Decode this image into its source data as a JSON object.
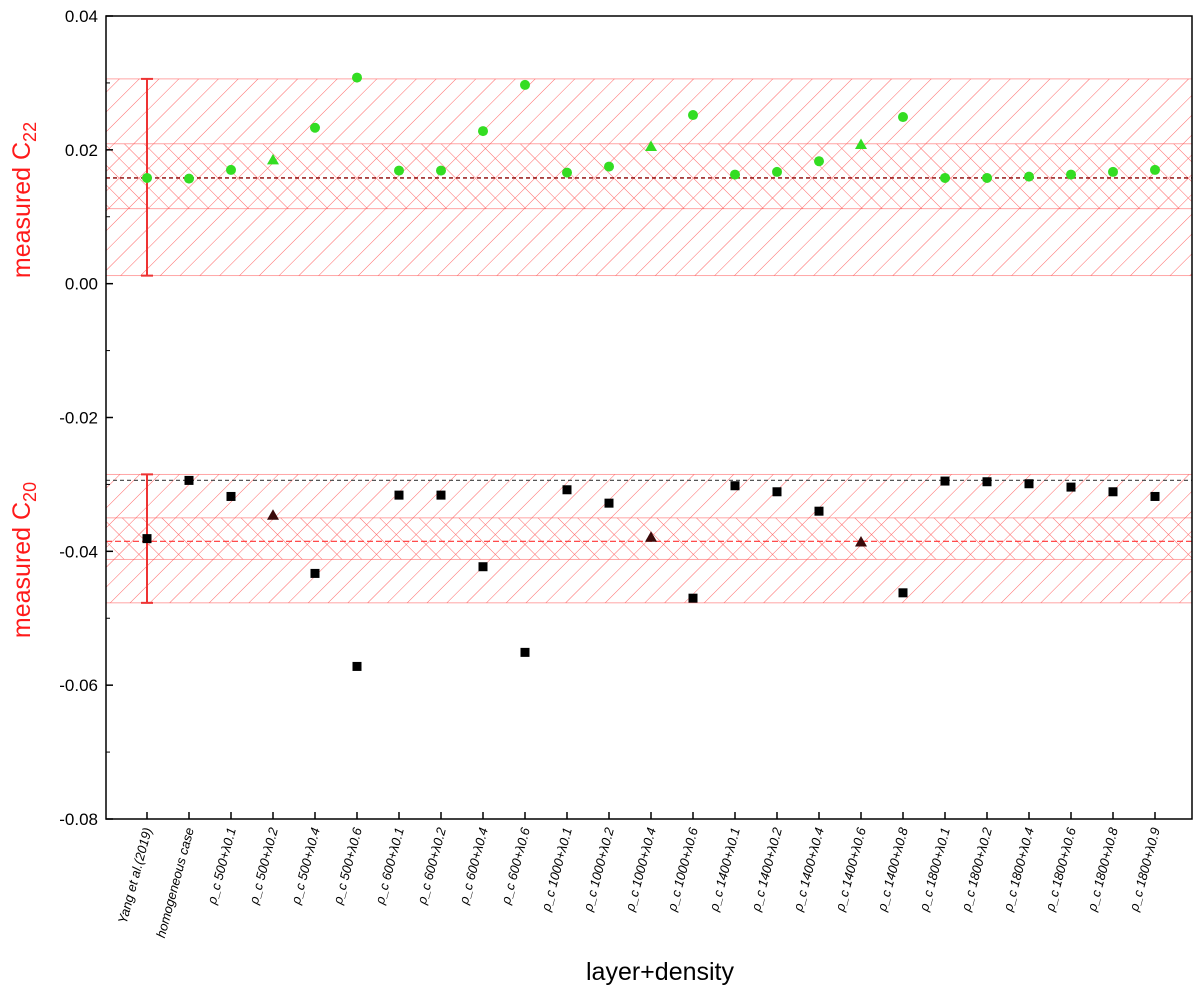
{
  "chart_data": {
    "type": "scatter",
    "xlabel": "layer+density",
    "ylabel_upper": {
      "main": "measured C",
      "sub": "22"
    },
    "ylabel_lower": {
      "main": "measured C",
      "sub": "20"
    },
    "ylim": [
      -0.08,
      0.04
    ],
    "yticks": [
      0.04,
      0.02,
      0.0,
      -0.02,
      -0.04,
      -0.06,
      -0.08
    ],
    "ytick_labels": [
      "0.04",
      "0.02",
      "0.00",
      "-0.02",
      "-0.04",
      "-0.06",
      "-0.08"
    ],
    "grid": false,
    "categories": [
      "Yang et al.(2019)",
      "homogeneous case",
      "ρ_c 500+λ0.1",
      "ρ_c 500+λ0.2",
      "ρ_c 500+λ0.4",
      "ρ_c 500+λ0.6",
      "ρ_c 600+λ0.1",
      "ρ_c 600+λ0.2",
      "ρ_c 600+λ0.4",
      "ρ_c 600+λ0.6",
      "ρ_c 1000+λ0.1",
      "ρ_c 1000+λ0.2",
      "ρ_c 1000+λ0.4",
      "ρ_c 1000+λ0.6",
      "ρ_c 1400+λ0.1",
      "ρ_c 1400+λ0.2",
      "ρ_c 1400+λ0.4",
      "ρ_c 1400+λ0.6",
      "ρ_c 1400+λ0.8",
      "ρ_c 1800+λ0.1",
      "ρ_c 1800+λ0.2",
      "ρ_c 1800+λ0.4",
      "ρ_c 1800+λ0.6",
      "ρ_c 1800+λ0.8",
      "ρ_c 1800+λ0.9"
    ],
    "series": [
      {
        "values": [
          0.0158,
          0.0157,
          0.017,
          0.0185,
          0.0233,
          0.0308,
          0.0169,
          0.0169,
          0.0228,
          0.0297,
          0.0166,
          0.0175,
          0.0205,
          0.0252,
          0.0163,
          0.0167,
          0.0183,
          0.0208,
          0.0249,
          0.0158,
          0.0158,
          0.016,
          0.0163,
          0.0167,
          0.017
        ],
        "markers": [
          "circle",
          "circle",
          "circle",
          "triangle",
          "circle",
          "circle",
          "circle",
          "circle",
          "circle",
          "circle",
          "circle",
          "circle",
          "triangle",
          "circle",
          "circle",
          "circle",
          "circle",
          "triangle",
          "circle",
          "circle",
          "circle",
          "circle",
          "circle",
          "circle",
          "circle"
        ],
        "color": "#33dd22"
      },
      {
        "values": [
          -0.0381,
          -0.0294,
          -0.0318,
          -0.0346,
          -0.0433,
          -0.0572,
          -0.0316,
          -0.0316,
          -0.0423,
          -0.0551,
          -0.0308,
          -0.0328,
          -0.0379,
          -0.047,
          -0.0302,
          -0.0311,
          -0.034,
          -0.0386,
          -0.0462,
          -0.0295,
          -0.0296,
          -0.0299,
          -0.0304,
          -0.0311,
          -0.0318
        ],
        "markers": [
          "square",
          "square",
          "square",
          "triangle",
          "square",
          "square",
          "square",
          "square",
          "square",
          "square",
          "square",
          "square",
          "triangle",
          "square",
          "square",
          "square",
          "square",
          "triangle",
          "square",
          "square",
          "square",
          "square",
          "square",
          "square",
          "square"
        ],
        "color": "#000000"
      }
    ],
    "reference_bands": {
      "C22": {
        "center": 0.0158,
        "inner": [
          0.0112,
          0.0209
        ],
        "outer": [
          0.0012,
          0.0306
        ],
        "color": "#ff4444"
      },
      "C20": {
        "center": -0.0383,
        "inner": [
          -0.0412,
          -0.035
        ],
        "outer": [
          -0.0477,
          -0.0285
        ],
        "color": "#ff4444"
      }
    },
    "reference_lines": {
      "C22_dashed": 0.0158,
      "C20_dashed_homogeneous": -0.0294,
      "C20_dashed_measured": -0.0385
    },
    "error_bars": [
      {
        "category_index": 0,
        "center": 0.0158,
        "low": 0.0012,
        "high": 0.0306
      },
      {
        "category_index": 0,
        "center": -0.0381,
        "low": -0.0477,
        "high": -0.0285
      }
    ]
  }
}
